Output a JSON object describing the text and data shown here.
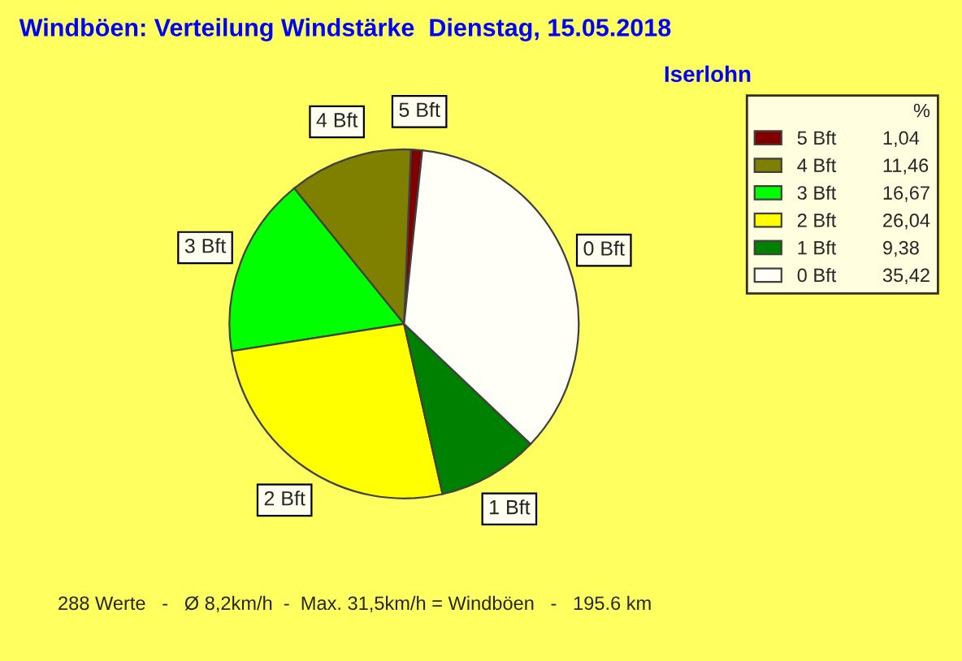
{
  "chart_data": {
    "type": "pie",
    "title": "Windböen: Verteilung Windstärke  Dienstag, 15.05.2018",
    "subtitle": "Iserlohn",
    "categories": [
      "5 Bft",
      "4 Bft",
      "3 Bft",
      "2 Bft",
      "1 Bft",
      "0 Bft"
    ],
    "values": [
      1.04,
      11.46,
      16.67,
      26.04,
      9.38,
      35.42
    ],
    "value_labels": [
      "1,04",
      "11,46",
      "16,67",
      "26,04",
      "9,38",
      "35,42"
    ],
    "colors": [
      "#800000",
      "#808000",
      "#00ff00",
      "#ffff00",
      "#008000",
      "#fffff8"
    ],
    "legend_title": "%",
    "legend": "top right",
    "annotations": [
      "288 Werte   -   Ø 8,2km/h  -  Max. 31,5km/h = Windböen   -   195.6 km"
    ]
  }
}
